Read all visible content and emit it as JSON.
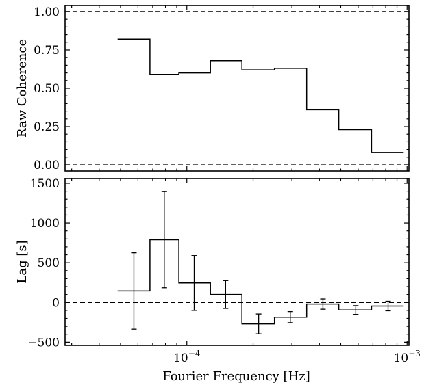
{
  "chart_data": [
    {
      "type": "line",
      "step": "post",
      "xscale": "log",
      "xlim": [
        2.8e-05,
        0.00102
      ],
      "ylim": [
        -0.04,
        1.04
      ],
      "ylabel": "Raw Coherence",
      "yticks": [
        0.0,
        0.25,
        0.5,
        0.75,
        1.0
      ],
      "ytick_labels": [
        "0.00",
        "0.25",
        "0.50",
        "0.75",
        "1.00"
      ],
      "reference_lines": [
        0.0,
        1.0
      ],
      "bin_edges": [
        4.85e-05,
        6.8e-05,
        9.2e-05,
        0.000128,
        0.000178,
        0.00025,
        0.00035,
        0.00049,
        0.00069,
        0.000965
      ],
      "values": [
        0.82,
        0.59,
        0.6,
        0.68,
        0.62,
        0.63,
        0.36,
        0.23,
        0.08
      ]
    },
    {
      "type": "line",
      "step": "post",
      "xscale": "log",
      "xlim": [
        2.8e-05,
        0.00102
      ],
      "ylim": [
        -540,
        1560
      ],
      "xlabel": "Fourier Frequency [Hz]",
      "ylabel": "Lag [s]",
      "yticks": [
        -500,
        0,
        500,
        1000,
        1500
      ],
      "ytick_labels": [
        "−500",
        "0",
        "500",
        "1000",
        "1500"
      ],
      "xtick_labels": [
        {
          "base": "10",
          "exp": "−4",
          "value": 0.0001
        },
        {
          "base": "10",
          "exp": "−3",
          "value": 0.001
        }
      ],
      "reference_lines": [
        0
      ],
      "bin_edges": [
        4.85e-05,
        6.8e-05,
        9.2e-05,
        0.000128,
        0.000178,
        0.00025,
        0.00035,
        0.00049,
        0.00069,
        0.000965
      ],
      "values": [
        145,
        790,
        245,
        100,
        -270,
        -185,
        -20,
        -95,
        -45
      ],
      "error_x": [
        5.75e-05,
        7.9e-05,
        0.000108,
        0.00015,
        0.000212,
        0.000295,
        0.000415,
        0.000585,
        0.00082
      ],
      "errors": [
        480,
        605,
        345,
        175,
        125,
        70,
        65,
        55,
        60
      ]
    }
  ]
}
